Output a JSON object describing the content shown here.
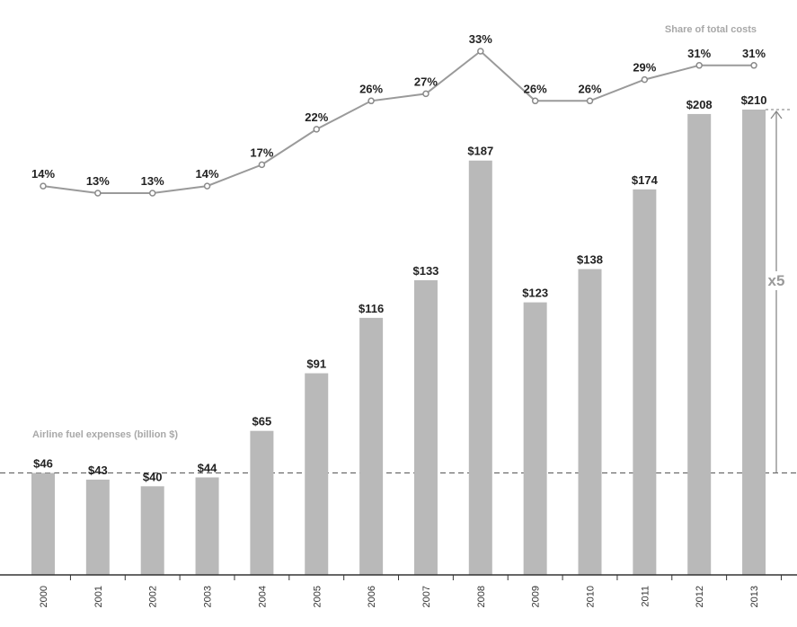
{
  "chart_data": {
    "type": "bar",
    "categories": [
      "2000",
      "2001",
      "2002",
      "2003",
      "2004",
      "2005",
      "2006",
      "2007",
      "2008",
      "2009",
      "2010",
      "2011",
      "2012",
      "2013"
    ],
    "series": [
      {
        "name": "Airline fuel expenses (billion $)",
        "type": "bar",
        "values": [
          46,
          43,
          40,
          44,
          65,
          91,
          116,
          133,
          187,
          123,
          138,
          174,
          208,
          210
        ],
        "labels": [
          "$46",
          "$43",
          "$40",
          "$44",
          "$65",
          "$91",
          "$116",
          "$133",
          "$187",
          "$123",
          "$138",
          "$174",
          "$208",
          "$210"
        ]
      },
      {
        "name": "Share of total costs",
        "type": "line",
        "values": [
          14,
          13,
          13,
          14,
          17,
          22,
          26,
          27,
          33,
          26,
          26,
          29,
          31,
          31
        ],
        "labels": [
          "14%",
          "13%",
          "13%",
          "14%",
          "17%",
          "22%",
          "26%",
          "27%",
          "33%",
          "26%",
          "26%",
          "29%",
          "31%",
          "31%"
        ]
      }
    ],
    "annotation": "x5",
    "bar_ylim": [
      0,
      210
    ],
    "line_ylim": [
      13,
      33
    ],
    "colors": {
      "bar": "#b9b9b9",
      "line": "#9a9a9a",
      "note": "#a8a8a8"
    }
  }
}
